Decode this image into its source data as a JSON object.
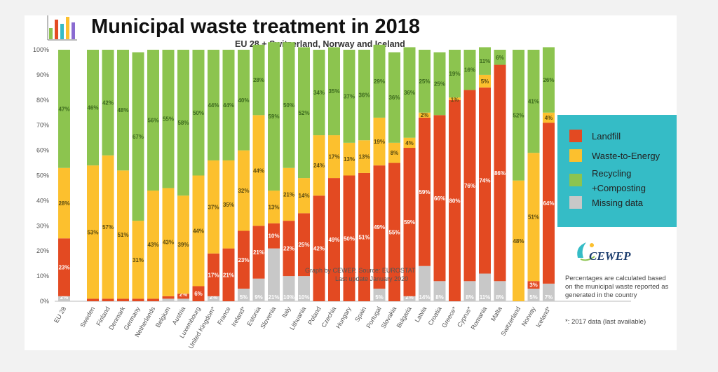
{
  "title": "Municipal waste treatment in 2018",
  "subtitle": "EU 28 + Switzerland, Norway and Iceland",
  "watermark": [
    "Graph by CEWEP. Source: EUROSTAT",
    "Last update January 2020"
  ],
  "legend": [
    {
      "name": "Landfill",
      "color": "#e34a22"
    },
    {
      "name": "Waste-to-Energy",
      "color": "#fcc02e"
    },
    {
      "name": "Recycling\n+Composting",
      "color": "#8cc44f"
    },
    {
      "name": "Missing data",
      "color": "#c8c8c8"
    }
  ],
  "brand": "CEWEP",
  "note": "Percentages are calculated based on the municipal waste reported as generated in the country",
  "footnote": "*: 2017 data (last available)",
  "colors": {
    "landfill": "#e34a22",
    "wte": "#fcc02e",
    "recycling": "#8cc44f",
    "missing": "#c8c8c8",
    "legend_bg": "#35bcc6"
  },
  "chart_data": {
    "type": "bar",
    "stacked": true,
    "ylim": [
      0,
      100
    ],
    "yticks": [
      "0%",
      "10%",
      "20%",
      "30%",
      "40%",
      "50%",
      "60%",
      "70%",
      "80%",
      "90%",
      "100%"
    ],
    "categories": [
      "EU 28",
      "Sweden",
      "Finland",
      "Denmark",
      "Germany",
      "Netherlands",
      "Belgium",
      "Austria",
      "Luxembourg",
      "United Kingdom*",
      "France",
      "Ireland*",
      "Estonia",
      "Slovenia",
      "Italy",
      "Lithuania",
      "Poland",
      "Czechia",
      "Hungary",
      "Spain",
      "Portugal",
      "Slovakia",
      "Bulgaria",
      "Latvia",
      "Croatia",
      "Greece*",
      "Cyprus*",
      "Romania",
      "Malta",
      "Switzerland",
      "Norway",
      "Iceland*"
    ],
    "series": [
      {
        "name": "Missing data",
        "values": [
          2,
          0,
          0,
          0,
          0,
          0,
          1,
          1,
          0,
          2,
          0,
          5,
          9,
          21,
          10,
          10,
          0,
          0,
          0,
          0,
          5,
          0,
          2,
          14,
          8,
          0,
          8,
          11,
          8,
          0,
          5,
          7
        ]
      },
      {
        "name": "Landfill",
        "values": [
          23,
          1,
          1,
          1,
          1,
          1,
          1,
          2,
          6,
          17,
          21,
          23,
          21,
          10,
          22,
          25,
          42,
          49,
          50,
          51,
          49,
          55,
          59,
          59,
          66,
          80,
          76,
          74,
          86,
          0,
          3,
          64
        ]
      },
      {
        "name": "Waste-to-Energy",
        "values": [
          28,
          53,
          57,
          51,
          31,
          43,
          43,
          39,
          44,
          37,
          35,
          32,
          44,
          13,
          21,
          14,
          24,
          17,
          13,
          13,
          19,
          8,
          4,
          2,
          0,
          1,
          0,
          5,
          0,
          48,
          51,
          4
        ]
      },
      {
        "name": "Recycling +Composting",
        "values": [
          47,
          46,
          42,
          48,
          67,
          56,
          55,
          58,
          50,
          44,
          44,
          40,
          28,
          59,
          50,
          52,
          34,
          35,
          37,
          36,
          29,
          36,
          36,
          25,
          25,
          19,
          16,
          11,
          6,
          52,
          41,
          26
        ]
      }
    ],
    "data_labels": {
      "Missing data": [
        "2%",
        "",
        "",
        "",
        "",
        "",
        "",
        "",
        "",
        "2%",
        "",
        "5%",
        "9%",
        "21%",
        "10%",
        "10%",
        "",
        "",
        "",
        "",
        "5%",
        "",
        "2%",
        "14%",
        "8%",
        "",
        "8%",
        "11%",
        "8%",
        "",
        "5%",
        "7%"
      ],
      "Landfill": [
        "23%",
        "",
        "",
        "",
        "",
        "",
        "",
        "2%",
        "6%",
        "17%",
        "21%",
        "23%",
        "21%",
        "10%",
        "22%",
        "25%",
        "42%",
        "49%",
        "50%",
        "51%",
        "49%",
        "55%",
        "59%",
        "59%",
        "66%",
        "80%",
        "76%",
        "74%",
        "86%",
        "",
        "3%",
        "64%"
      ],
      "Waste-to-Energy": [
        "28%",
        "53%",
        "57%",
        "51%",
        "31%",
        "43%",
        "43%",
        "39%",
        "44%",
        "37%",
        "35%",
        "32%",
        "44%",
        "13%",
        "21%",
        "14%",
        "24%",
        "17%",
        "13%",
        "13%",
        "19%",
        "8%",
        "4%",
        "2%",
        "",
        "1%",
        "",
        "5%",
        "",
        "48%",
        "51%",
        "4%"
      ],
      "Recycling +Composting": [
        "47%",
        "46%",
        "42%",
        "48%",
        "67%",
        "56%",
        "55%",
        "58%",
        "50%",
        "44%",
        "44%",
        "40%",
        "28%",
        "59%",
        "50%",
        "52%",
        "34%",
        "35%",
        "37%",
        "36%",
        "29%",
        "36%",
        "36%",
        "25%",
        "25%",
        "19%",
        "16%",
        "11%",
        "6%",
        "52%",
        "41%",
        "26%"
      ]
    },
    "grid": false,
    "legend_position": "right"
  }
}
